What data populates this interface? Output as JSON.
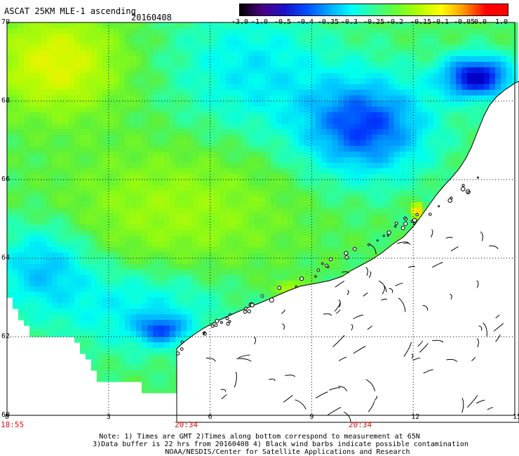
{
  "header": {
    "title": "ASCAT 25KM MLE-1 ascending",
    "date": "20160408"
  },
  "colorbar": {
    "labels": [
      "-3.0",
      "-1.0",
      "-0.5",
      "-0.4",
      "-0.35",
      "-0.3",
      "-0.25",
      "-0.2",
      "-0.15",
      "-0.1",
      "-0.05",
      "0.0",
      "1.0"
    ],
    "colors": [
      "#000000",
      "#4b0082",
      "#1a10c8",
      "#0050ff",
      "#00a8ff",
      "#00ffff",
      "#33ff99",
      "#66ff33",
      "#b3ff00",
      "#ffff00",
      "#ff9900",
      "#ff0000"
    ]
  },
  "map": {
    "lat_labels": [
      "70",
      "68",
      "66",
      "64",
      "62",
      "60"
    ],
    "lon_labels": [
      "0",
      "3",
      "6",
      "9",
      "12",
      "15"
    ],
    "time_labels": [
      "18:55",
      "20:34",
      "20:34"
    ],
    "lat_range": [
      60,
      70
    ],
    "lon_range": [
      0,
      15
    ]
  },
  "notes": [
    "Note: 1) Times are GMT 2)Times along bottom correspond to measurement at 65N",
    "3)Data buffer is 22 hrs from 20160408 4) Black wind barbs indicate possible contamination",
    "NOAA/NESDIS/Center for Satellite Applications and Research"
  ]
}
